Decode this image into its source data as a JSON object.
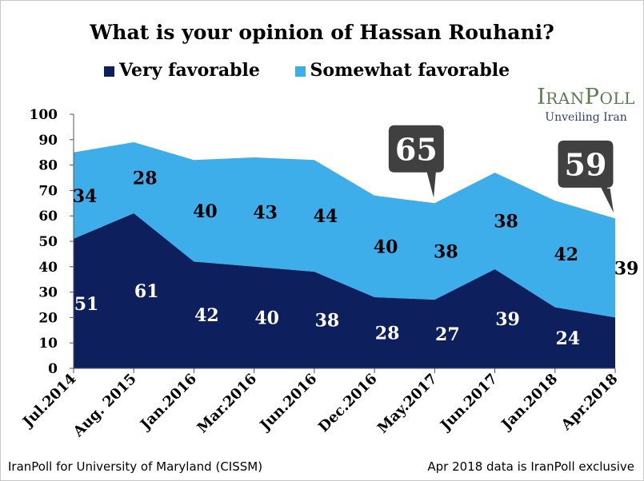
{
  "chart_data": {
    "type": "area",
    "stacked": true,
    "title": "What is your opinion of Hassan Rouhani?",
    "categories": [
      "Jul.2014",
      "Aug. 2015",
      "Jan.2016",
      "Mar.2016",
      "Jun.2016",
      "Dec.2016",
      "May.2017",
      "Jun.2017",
      "Jan.2018",
      "Apr.2018"
    ],
    "series": [
      {
        "name": "Very favorable",
        "color": "#0d1f5c",
        "values": [
          51,
          61,
          42,
          40,
          38,
          28,
          27,
          39,
          24,
          20
        ]
      },
      {
        "name": "Somewhat favorable",
        "color": "#3daee9",
        "values": [
          34,
          28,
          40,
          43,
          44,
          40,
          38,
          38,
          42,
          39
        ]
      }
    ],
    "ylim": [
      0,
      100
    ],
    "yticks": [
      0,
      10,
      20,
      30,
      40,
      50,
      60,
      70,
      80,
      90,
      100
    ],
    "grid": false,
    "legend": "top",
    "callouts": [
      {
        "category": "May.2017",
        "value": 65,
        "text": "65"
      },
      {
        "category": "Apr.2018",
        "value": 59,
        "text": "59"
      }
    ]
  },
  "logo": {
    "text_big_1": "I",
    "text_small_1": "RAN",
    "text_big_2": "P",
    "text_small_2": "OLL",
    "tagline": "Unveiling Iran"
  },
  "footer": {
    "left": "IranPoll for University of Maryland (CISSM)",
    "right": "Apr 2018 data is IranPoll exclusive"
  }
}
